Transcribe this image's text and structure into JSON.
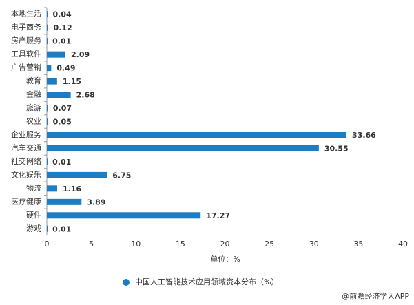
{
  "chart_data": {
    "type": "bar",
    "orientation": "horizontal",
    "categories": [
      "本地生活",
      "电子商务",
      "房产服务",
      "工具软件",
      "广告营销",
      "教育",
      "金融",
      "旅游",
      "农业",
      "企业服务",
      "汽车交通",
      "社交网络",
      "文化娱乐",
      "物流",
      "医疗健康",
      "硬件",
      "游戏"
    ],
    "series": [
      {
        "name": "中国人工智能技术应用领域资本分布（%）",
        "color": "#1c7cc4",
        "values": [
          0.04,
          0.12,
          0.01,
          2.09,
          0.49,
          1.15,
          2.68,
          0.07,
          0.05,
          33.66,
          30.55,
          0.01,
          6.75,
          1.16,
          3.89,
          17.27,
          0.01
        ]
      }
    ],
    "xlim": [
      0,
      40
    ],
    "xticks": [
      0,
      5,
      10,
      15,
      20,
      25,
      30,
      35,
      40
    ],
    "x_label": "单位：%",
    "source": "@前瞻经济学人APP",
    "grid": false,
    "legend": "bottom"
  }
}
